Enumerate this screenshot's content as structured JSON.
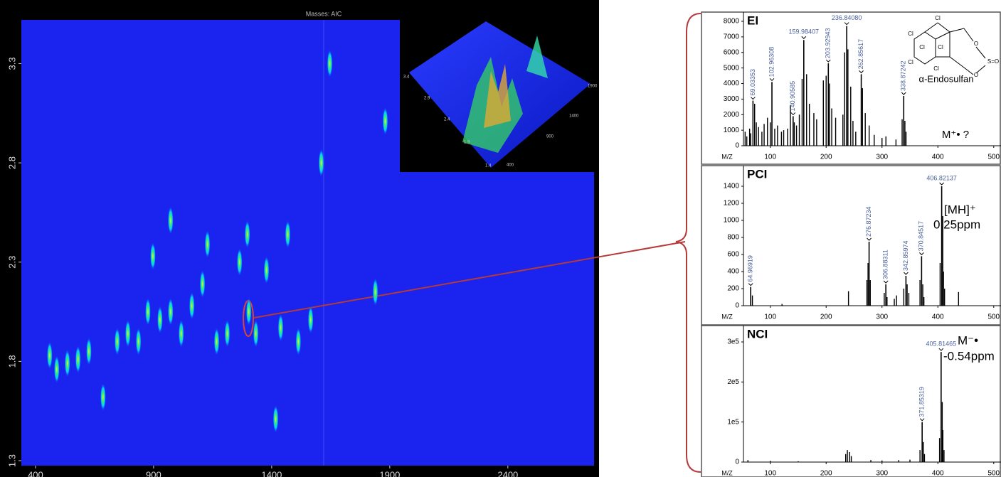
{
  "chart_data": [
    {
      "type": "contour",
      "title": "Masses: AIC",
      "x": [
        460,
        490,
        535,
        580,
        626,
        686,
        746,
        791,
        836,
        876,
        897,
        927,
        972,
        972,
        1017,
        1062,
        1107,
        1128,
        1167,
        1212,
        1264,
        1297,
        1303,
        1333,
        1378,
        1417,
        1438,
        1468,
        1513,
        1565,
        1610,
        1646,
        1839,
        1881
      ],
      "y": [
        1.83,
        1.76,
        1.79,
        1.81,
        1.85,
        1.62,
        1.9,
        1.94,
        1.9,
        2.05,
        2.33,
        2.01,
        2.05,
        2.51,
        1.94,
        2.08,
        2.19,
        2.39,
        1.9,
        1.94,
        2.3,
        2.44,
        2.05,
        1.94,
        2.26,
        1.51,
        1.97,
        2.44,
        1.9,
        2.01,
        2.8,
        3.3,
        2.15,
        3.01
      ],
      "xlim": [
        340,
        2765
      ],
      "ylim": [
        1.275,
        3.52
      ],
      "xticks": [
        400,
        900,
        1400,
        1900,
        2400
      ],
      "yticks": [
        1.3,
        1.8,
        2.3,
        2.8,
        3.3
      ],
      "inset": {
        "xticks": [
          400,
          900,
          1400,
          1900
        ],
        "yticks": [
          3.4,
          2.9,
          2.4,
          1.9,
          1.4
        ]
      }
    },
    {
      "type": "spectrum",
      "label": "EI",
      "xlabel": "M/Z",
      "color": "#000000",
      "x": [
        55,
        58,
        63,
        65,
        72,
        75,
        79,
        85,
        89,
        95,
        100,
        108,
        113,
        120,
        124,
        131,
        136,
        143,
        147,
        152,
        157,
        165,
        170,
        178,
        183,
        195,
        200,
        206,
        210,
        217,
        230,
        233,
        239,
        244,
        248,
        253,
        265,
        270,
        277,
        286,
        300,
        307,
        325,
        336,
        341,
        343
      ],
      "values": [
        900,
        600,
        1100,
        800,
        2700,
        1500,
        1200,
        900,
        1400,
        1800,
        1500,
        1100,
        1300,
        900,
        1000,
        1100,
        2600,
        1500,
        1300,
        2000,
        4300,
        4600,
        2700,
        2100,
        1700,
        4200,
        4500,
        4000,
        2400,
        1800,
        2000,
        6000,
        6200,
        3800,
        1600,
        900,
        3700,
        2100,
        1300,
        700,
        500,
        600,
        400,
        1700,
        1600,
        900
      ],
      "annotations": [
        {
          "x": 69.03353,
          "y": 2900
        },
        {
          "x": 102.96308,
          "y": 4100
        },
        {
          "x": 140.90585,
          "y": 1900
        },
        {
          "x": 159.98407,
          "y": 6800
        },
        {
          "x": 203.92943,
          "y": 5300
        },
        {
          "x": {
            "value": 236.8408,
            "label": "236.84080"
          },
          "y": 7700
        },
        {
          "x": 262.85617,
          "y": 4600
        },
        {
          "x": 338.87242,
          "y": 3200
        }
      ],
      "notes": [
        "α-Endosulfan",
        "M⁺• ?"
      ],
      "structure": [
        "Cl",
        "Cl",
        "Cl",
        "Cl",
        "Cl",
        "Cl",
        "O",
        "O",
        "S=O"
      ],
      "xlim": [
        52,
        513
      ],
      "ylim": [
        0,
        8000
      ],
      "xticks": [
        100,
        200,
        300,
        400,
        500
      ],
      "yticks": [
        0,
        1000,
        2000,
        3000,
        4000,
        5000,
        6000,
        7000,
        8000
      ]
    },
    {
      "type": "spectrum",
      "label": "PCI",
      "xlabel": "M/Z",
      "color": "#000000",
      "x": [
        68,
        121,
        240,
        273,
        275,
        279,
        304,
        309,
        322,
        326,
        339,
        345,
        348,
        368,
        373,
        375,
        404,
        408.8,
        410,
        412,
        437
      ],
      "values": [
        120,
        20,
        170,
        300,
        500,
        300,
        150,
        100,
        80,
        120,
        200,
        250,
        150,
        300,
        250,
        100,
        500,
        1050,
        400,
        200,
        160
      ],
      "annotations": [
        {
          "x": 64.96919,
          "y": 220
        },
        {
          "x": 276.87234,
          "y": 750
        },
        {
          "x": 306.88311,
          "y": 250
        },
        {
          "x": 342.85974,
          "y": 350
        },
        {
          "x": 370.84517,
          "y": 580
        },
        {
          "x": 406.82137,
          "y": 1400
        }
      ],
      "notes": [
        "[MH]⁺",
        "0.25ppm"
      ],
      "xlim": [
        52,
        513
      ],
      "ylim": [
        0,
        1400
      ],
      "xticks": [
        100,
        200,
        300,
        400,
        500
      ],
      "yticks": [
        0,
        200,
        400,
        600,
        800,
        1000,
        1200,
        1400
      ]
    },
    {
      "type": "spectrum",
      "label": "NCI",
      "xlabel": "M/Z",
      "color": "#000000",
      "x": [
        60,
        100,
        150,
        235,
        238,
        242,
        245,
        280,
        300,
        330,
        350,
        368,
        374,
        376,
        403,
        407.8,
        409,
        411
      ],
      "values": [
        5000,
        3000,
        2000,
        20000,
        30000,
        25000,
        15000,
        5000,
        4000,
        5000,
        6000,
        30000,
        50000,
        20000,
        60000,
        150000,
        80000,
        30000
      ],
      "annotations": [
        {
          "x": 371.85319,
          "y": 100000
        },
        {
          "x": 405.81465,
          "y": 275000
        }
      ],
      "notes": [
        "M⁻•",
        "-0.54ppm"
      ],
      "xlim": [
        52,
        513
      ],
      "ylim": [
        0,
        300000
      ],
      "xticks": [
        100,
        200,
        300,
        400,
        500
      ],
      "yticks": [
        0,
        {
          "value": 100000,
          "label": "1e5"
        },
        {
          "value": 200000,
          "label": "2e5"
        },
        {
          "value": 300000,
          "label": "3e5"
        }
      ]
    }
  ]
}
